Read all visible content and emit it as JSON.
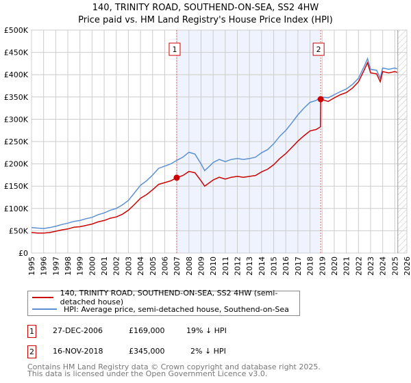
{
  "chart_data": {
    "type": "line",
    "title": "140, TRINITY ROAD, SOUTHEND-ON-SEA, SS2 4HW",
    "subtitle": "Price paid vs. HM Land Registry's House Price Index (HPI)",
    "xlim": [
      1995,
      2026
    ],
    "ylim": [
      0,
      500000
    ],
    "xticks": [
      "1995",
      "1996",
      "1997",
      "1998",
      "1999",
      "2000",
      "2001",
      "2002",
      "2003",
      "2004",
      "2005",
      "2006",
      "2007",
      "2008",
      "2009",
      "2010",
      "2011",
      "2012",
      "2013",
      "2014",
      "2015",
      "2016",
      "2017",
      "2018",
      "2019",
      "2020",
      "2021",
      "2022",
      "2023",
      "2024",
      "2025",
      "2026"
    ],
    "yticks": [
      {
        "v": 0,
        "label": "£0"
      },
      {
        "v": 50000,
        "label": "£50K"
      },
      {
        "v": 100000,
        "label": "£100K"
      },
      {
        "v": 150000,
        "label": "£150K"
      },
      {
        "v": 200000,
        "label": "£200K"
      },
      {
        "v": 250000,
        "label": "£250K"
      },
      {
        "v": 300000,
        "label": "£300K"
      },
      {
        "v": 350000,
        "label": "£350K"
      },
      {
        "v": 400000,
        "label": "£400K"
      },
      {
        "v": 450000,
        "label": "£450K"
      },
      {
        "v": 500000,
        "label": "£500K"
      }
    ],
    "grid": true,
    "shaded_range": [
      2006.99,
      2018.88
    ],
    "forecast_hatch_from": 2025.25,
    "series": [
      {
        "name": "140, TRINITY ROAD, SOUTHEND-ON-SEA, SS2 4HW (semi-detached house)",
        "color": "#cc0000",
        "points": [
          [
            1995,
            46
          ],
          [
            1995.5,
            45
          ],
          [
            1996,
            45
          ],
          [
            1996.5,
            46
          ],
          [
            1997,
            49
          ],
          [
            1997.5,
            52
          ],
          [
            1998,
            54
          ],
          [
            1998.5,
            58
          ],
          [
            1999,
            59
          ],
          [
            1999.5,
            62
          ],
          [
            2000,
            65
          ],
          [
            2000.5,
            70
          ],
          [
            2001,
            73
          ],
          [
            2001.5,
            78
          ],
          [
            2002,
            81
          ],
          [
            2002.5,
            87
          ],
          [
            2003,
            96
          ],
          [
            2003.5,
            109
          ],
          [
            2004,
            123
          ],
          [
            2004.5,
            131
          ],
          [
            2005,
            142
          ],
          [
            2005.5,
            154
          ],
          [
            2006,
            158
          ],
          [
            2006.5,
            162
          ],
          [
            2006.99,
            169
          ],
          [
            2007.5,
            174
          ],
          [
            2008,
            183
          ],
          [
            2008.5,
            180
          ],
          [
            2009,
            162
          ],
          [
            2009.3,
            150
          ],
          [
            2009.7,
            158
          ],
          [
            2010,
            164
          ],
          [
            2010.5,
            170
          ],
          [
            2011,
            166
          ],
          [
            2011.5,
            170
          ],
          [
            2012,
            172
          ],
          [
            2012.5,
            170
          ],
          [
            2013,
            172
          ],
          [
            2013.5,
            174
          ],
          [
            2014,
            182
          ],
          [
            2014.5,
            188
          ],
          [
            2015,
            198
          ],
          [
            2015.5,
            212
          ],
          [
            2016,
            223
          ],
          [
            2016.5,
            237
          ],
          [
            2017,
            251
          ],
          [
            2017.5,
            263
          ],
          [
            2018,
            274
          ],
          [
            2018.5,
            277
          ],
          [
            2018.86,
            283
          ],
          [
            2018.88,
            345
          ],
          [
            2019.5,
            340
          ],
          [
            2020,
            348
          ],
          [
            2020.5,
            355
          ],
          [
            2021,
            360
          ],
          [
            2021.5,
            370
          ],
          [
            2022,
            384
          ],
          [
            2022.5,
            412
          ],
          [
            2022.75,
            427
          ],
          [
            2023,
            404
          ],
          [
            2023.5,
            402
          ],
          [
            2023.8,
            384
          ],
          [
            2024,
            407
          ],
          [
            2024.5,
            404
          ],
          [
            2025,
            407
          ],
          [
            2025.2,
            405
          ]
        ]
      },
      {
        "name": "HPI: Average price, semi-detached house, Southend-on-Sea",
        "color": "#5b8fd4",
        "points": [
          [
            1995,
            57
          ],
          [
            1995.5,
            56
          ],
          [
            1996,
            55
          ],
          [
            1996.5,
            57
          ],
          [
            1997,
            60
          ],
          [
            1997.5,
            64
          ],
          [
            1998,
            67
          ],
          [
            1998.5,
            71
          ],
          [
            1999,
            73
          ],
          [
            1999.5,
            77
          ],
          [
            2000,
            80
          ],
          [
            2000.5,
            86
          ],
          [
            2001,
            90
          ],
          [
            2001.5,
            96
          ],
          [
            2002,
            100
          ],
          [
            2002.5,
            108
          ],
          [
            2003,
            118
          ],
          [
            2003.5,
            135
          ],
          [
            2004,
            152
          ],
          [
            2004.5,
            162
          ],
          [
            2005,
            175
          ],
          [
            2005.5,
            190
          ],
          [
            2006,
            195
          ],
          [
            2006.5,
            200
          ],
          [
            2007,
            208
          ],
          [
            2007.5,
            215
          ],
          [
            2008,
            226
          ],
          [
            2008.5,
            222
          ],
          [
            2009,
            200
          ],
          [
            2009.3,
            185
          ],
          [
            2009.7,
            195
          ],
          [
            2010,
            203
          ],
          [
            2010.5,
            210
          ],
          [
            2011,
            205
          ],
          [
            2011.5,
            210
          ],
          [
            2012,
            212
          ],
          [
            2012.5,
            210
          ],
          [
            2013,
            212
          ],
          [
            2013.5,
            215
          ],
          [
            2014,
            225
          ],
          [
            2014.5,
            232
          ],
          [
            2015,
            245
          ],
          [
            2015.5,
            262
          ],
          [
            2016,
            275
          ],
          [
            2016.5,
            292
          ],
          [
            2017,
            310
          ],
          [
            2017.5,
            325
          ],
          [
            2018,
            338
          ],
          [
            2018.5,
            342
          ],
          [
            2018.9,
            350
          ],
          [
            2019.5,
            348
          ],
          [
            2020,
            355
          ],
          [
            2020.5,
            362
          ],
          [
            2021,
            368
          ],
          [
            2021.5,
            378
          ],
          [
            2022,
            392
          ],
          [
            2022.5,
            420
          ],
          [
            2022.75,
            436
          ],
          [
            2023,
            412
          ],
          [
            2023.5,
            410
          ],
          [
            2023.8,
            392
          ],
          [
            2024,
            415
          ],
          [
            2024.5,
            412
          ],
          [
            2025,
            415
          ],
          [
            2025.2,
            413
          ]
        ]
      }
    ],
    "value_unit": "thousands GBP",
    "sales": [
      {
        "id": "1",
        "x": 2006.99,
        "y": 169
      },
      {
        "id": "2",
        "x": 2018.88,
        "y": 345
      }
    ]
  },
  "legend": {
    "red_label": "140, TRINITY ROAD, SOUTHEND-ON-SEA, SS2 4HW (semi-detached house)",
    "blue_label": "HPI: Average price, semi-detached house, Southend-on-Sea"
  },
  "transactions": [
    {
      "id": "1",
      "date": "27-DEC-2006",
      "price": "£169,000",
      "hpi": "19% ↓ HPI"
    },
    {
      "id": "2",
      "date": "16-NOV-2018",
      "price": "£345,000",
      "hpi": "2% ↓ HPI"
    }
  ],
  "footer": {
    "line1": "Contains HM Land Registry data © Crown copyright and database right 2025.",
    "line2": "This data is licensed under the Open Government Licence v3.0."
  }
}
